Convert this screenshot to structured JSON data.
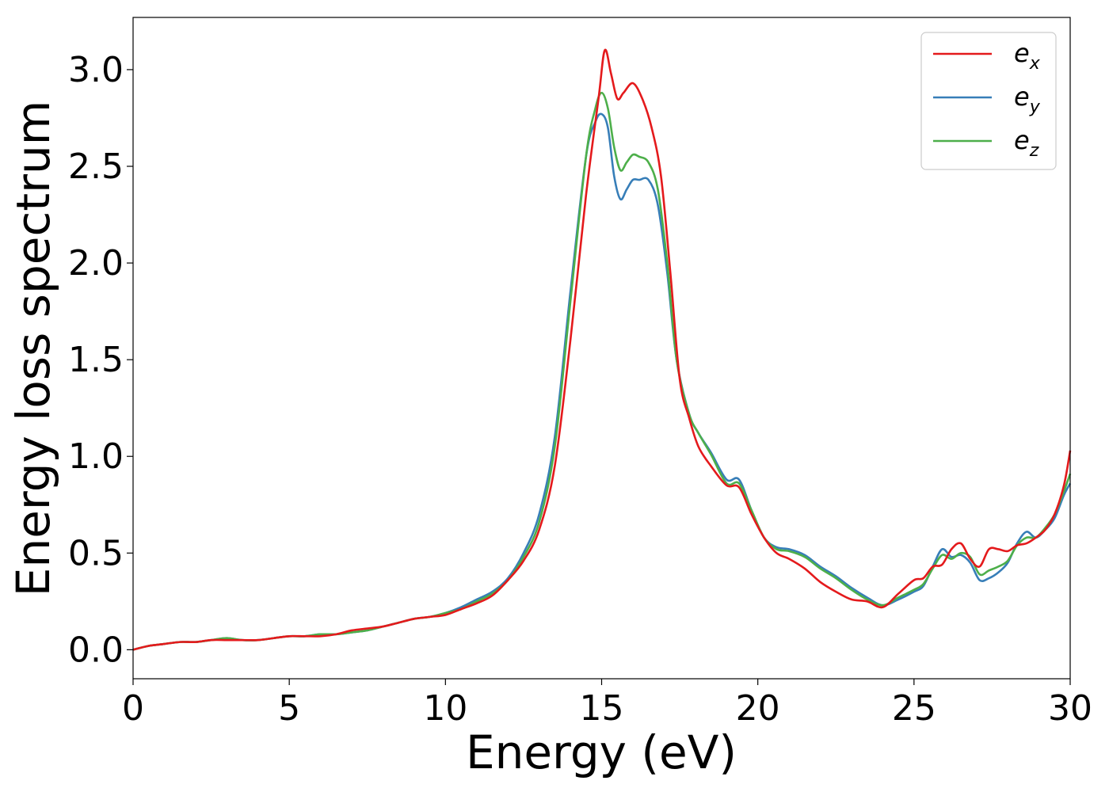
{
  "chart_data": {
    "type": "line",
    "title": "",
    "xlabel": "Energy (eV)",
    "ylabel": "Energy loss spectrum",
    "xlim": [
      0,
      30
    ],
    "ylim": [
      -0.15,
      3.27
    ],
    "xticks": [
      0,
      5,
      10,
      15,
      20,
      25,
      30
    ],
    "yticks": [
      0.0,
      0.5,
      1.0,
      1.5,
      2.0,
      2.5,
      3.0
    ],
    "xtick_labels": [
      "0",
      "5",
      "10",
      "15",
      "20",
      "25",
      "30"
    ],
    "ytick_labels": [
      "0.0",
      "0.5",
      "1.0",
      "1.5",
      "2.0",
      "2.5",
      "3.0"
    ],
    "grid": false,
    "legend_position": "top-right",
    "series": [
      {
        "name": "e_x",
        "label_base": "e",
        "label_sub": "x",
        "color": "#e41a1c",
        "x": [
          0,
          0.5,
          1,
          1.5,
          2,
          2.5,
          3,
          3.5,
          4,
          4.5,
          5,
          5.5,
          6,
          6.5,
          7,
          7.5,
          8,
          8.5,
          9,
          9.5,
          10,
          10.5,
          11,
          11.5,
          12,
          12.5,
          13,
          13.5,
          14,
          14.5,
          14.9,
          15.1,
          15.3,
          15.5,
          15.7,
          16,
          16.3,
          16.6,
          16.9,
          17.2,
          17.5,
          17.8,
          18.1,
          18.5,
          19,
          19.4,
          19.8,
          20.2,
          20.6,
          21,
          21.5,
          22,
          22.5,
          23,
          23.5,
          24,
          24.5,
          25,
          25.3,
          25.6,
          25.9,
          26.2,
          26.5,
          26.8,
          27.1,
          27.4,
          27.7,
          28,
          28.3,
          28.6,
          28.9,
          29.2,
          29.5,
          29.8,
          30
        ],
        "y": [
          0.0,
          0.02,
          0.03,
          0.04,
          0.04,
          0.05,
          0.05,
          0.05,
          0.05,
          0.06,
          0.07,
          0.07,
          0.07,
          0.08,
          0.1,
          0.11,
          0.12,
          0.14,
          0.16,
          0.17,
          0.18,
          0.21,
          0.24,
          0.28,
          0.36,
          0.46,
          0.62,
          0.95,
          1.6,
          2.35,
          2.85,
          3.1,
          2.98,
          2.85,
          2.88,
          2.93,
          2.85,
          2.7,
          2.45,
          1.95,
          1.4,
          1.2,
          1.05,
          0.95,
          0.85,
          0.84,
          0.7,
          0.58,
          0.5,
          0.47,
          0.42,
          0.35,
          0.3,
          0.26,
          0.25,
          0.22,
          0.29,
          0.36,
          0.37,
          0.43,
          0.44,
          0.52,
          0.55,
          0.47,
          0.43,
          0.52,
          0.52,
          0.51,
          0.54,
          0.55,
          0.58,
          0.62,
          0.7,
          0.85,
          1.03
        ]
      },
      {
        "name": "e_y",
        "label_base": "e",
        "label_sub": "y",
        "color": "#377eb8",
        "x": [
          0,
          0.5,
          1,
          1.5,
          2,
          2.5,
          3,
          3.5,
          4,
          4.5,
          5,
          5.5,
          6,
          6.5,
          7,
          7.5,
          8,
          8.5,
          9,
          9.5,
          10,
          10.5,
          11,
          11.5,
          12,
          12.5,
          13,
          13.5,
          14,
          14.5,
          14.8,
          15,
          15.2,
          15.4,
          15.6,
          15.8,
          16,
          16.2,
          16.5,
          16.8,
          17.1,
          17.4,
          17.8,
          18.1,
          18.5,
          19,
          19.4,
          19.8,
          20.2,
          20.6,
          21,
          21.5,
          22,
          22.5,
          23,
          23.5,
          24,
          24.5,
          25,
          25.3,
          25.6,
          25.9,
          26.2,
          26.5,
          26.8,
          27.1,
          27.4,
          27.7,
          28,
          28.3,
          28.6,
          28.9,
          29.2,
          29.5,
          29.8,
          30
        ],
        "y": [
          0.0,
          0.02,
          0.03,
          0.04,
          0.04,
          0.05,
          0.06,
          0.05,
          0.05,
          0.06,
          0.07,
          0.07,
          0.08,
          0.08,
          0.09,
          0.1,
          0.12,
          0.14,
          0.16,
          0.17,
          0.19,
          0.22,
          0.26,
          0.3,
          0.37,
          0.5,
          0.7,
          1.1,
          1.85,
          2.55,
          2.73,
          2.77,
          2.7,
          2.45,
          2.33,
          2.38,
          2.43,
          2.43,
          2.43,
          2.3,
          1.95,
          1.5,
          1.22,
          1.12,
          1.02,
          0.88,
          0.88,
          0.72,
          0.58,
          0.53,
          0.52,
          0.49,
          0.43,
          0.38,
          0.32,
          0.27,
          0.23,
          0.26,
          0.3,
          0.33,
          0.43,
          0.52,
          0.48,
          0.49,
          0.45,
          0.36,
          0.37,
          0.4,
          0.45,
          0.55,
          0.61,
          0.58,
          0.62,
          0.68,
          0.8,
          0.86
        ]
      },
      {
        "name": "e_z",
        "label_base": "e",
        "label_sub": "z",
        "color": "#4daf4a",
        "x": [
          0,
          0.5,
          1,
          1.5,
          2,
          2.5,
          3,
          3.5,
          4,
          4.5,
          5,
          5.5,
          6,
          6.5,
          7,
          7.5,
          8,
          8.5,
          9,
          9.5,
          10,
          10.5,
          11,
          11.5,
          12,
          12.5,
          13,
          13.5,
          14,
          14.5,
          14.8,
          15,
          15.2,
          15.4,
          15.6,
          15.8,
          16,
          16.2,
          16.5,
          16.8,
          17.1,
          17.4,
          17.8,
          18.1,
          18.5,
          19,
          19.4,
          19.8,
          20.2,
          20.6,
          21,
          21.5,
          22,
          22.5,
          23,
          23.5,
          24,
          24.5,
          25,
          25.3,
          25.6,
          25.9,
          26.2,
          26.5,
          26.8,
          27.1,
          27.4,
          27.7,
          28,
          28.3,
          28.6,
          28.9,
          29.2,
          29.5,
          29.8,
          30
        ],
        "y": [
          0.0,
          0.02,
          0.03,
          0.04,
          0.04,
          0.05,
          0.06,
          0.05,
          0.05,
          0.06,
          0.07,
          0.07,
          0.08,
          0.08,
          0.09,
          0.1,
          0.12,
          0.14,
          0.16,
          0.17,
          0.19,
          0.21,
          0.25,
          0.29,
          0.36,
          0.48,
          0.66,
          1.05,
          1.8,
          2.55,
          2.8,
          2.88,
          2.8,
          2.6,
          2.48,
          2.52,
          2.56,
          2.55,
          2.52,
          2.38,
          2.0,
          1.5,
          1.22,
          1.12,
          1.01,
          0.86,
          0.86,
          0.72,
          0.58,
          0.52,
          0.51,
          0.48,
          0.42,
          0.37,
          0.31,
          0.26,
          0.23,
          0.27,
          0.31,
          0.34,
          0.42,
          0.49,
          0.47,
          0.5,
          0.48,
          0.39,
          0.41,
          0.43,
          0.46,
          0.54,
          0.58,
          0.58,
          0.63,
          0.7,
          0.82,
          0.91
        ]
      }
    ]
  }
}
